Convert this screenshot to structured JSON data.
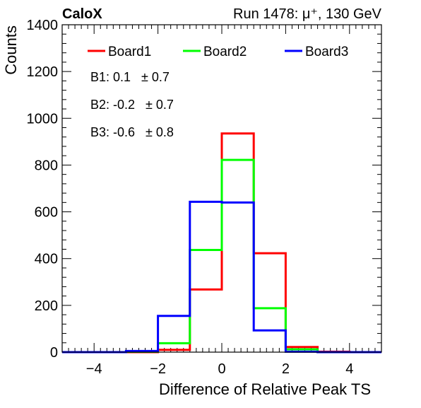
{
  "chart_data": {
    "type": "histogram",
    "header_left": "CaloX",
    "header_right": "Run 1478:   μ⁺, 130 GeV",
    "xlabel": "Difference of Relative Peak TS",
    "ylabel": "Counts",
    "xlim": [
      -5,
      5
    ],
    "ylim": [
      0,
      1400
    ],
    "x_ticks": [
      -4,
      -2,
      0,
      2,
      4
    ],
    "x_tick_labels": [
      "−4",
      "−2",
      "0",
      "2",
      "4"
    ],
    "y_ticks": [
      0,
      200,
      400,
      600,
      800,
      1000,
      1200,
      1400
    ],
    "y_tick_labels": [
      "0",
      "200",
      "400",
      "600",
      "800",
      "1000",
      "1200",
      "1400"
    ],
    "bin_edges": [
      -5,
      -4,
      -3,
      -2,
      -1,
      0,
      1,
      2,
      3,
      4,
      5
    ],
    "series": [
      {
        "name": "Board1",
        "color": "#ff0000",
        "values": [
          0,
          0,
          0,
          10,
          268,
          935,
          423,
          22,
          2,
          0
        ],
        "stat": "B1: 0.1   ± 0.7"
      },
      {
        "name": "Board2",
        "color": "#00ff00",
        "values": [
          0,
          0,
          2,
          38,
          437,
          822,
          188,
          12,
          0,
          0
        ],
        "stat": "B2: -0.2   ± 0.7"
      },
      {
        "name": "Board3",
        "color": "#0000ff",
        "values": [
          0,
          0,
          5,
          155,
          643,
          640,
          93,
          2,
          0,
          0
        ],
        "stat": "B3: -0.6   ± 0.8"
      }
    ],
    "legend_position": "top",
    "grid": false
  }
}
